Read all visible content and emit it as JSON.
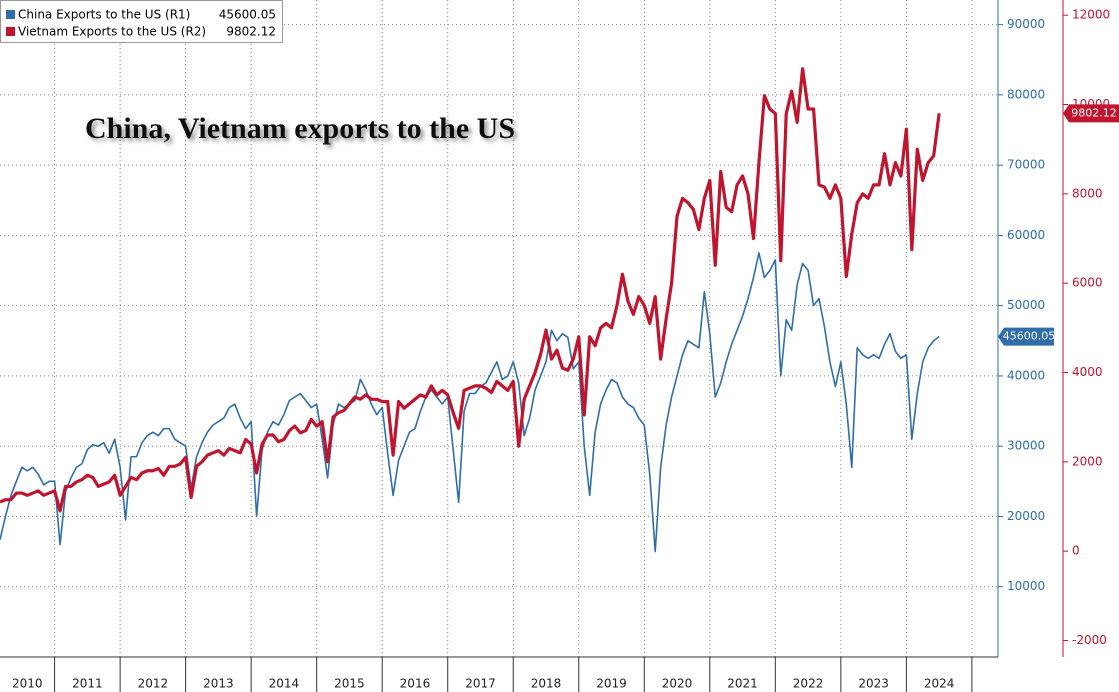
{
  "chart_data": {
    "type": "line",
    "title": "China, Vietnam exports to the US",
    "categories": [
      null,
      null,
      null,
      null,
      null,
      "2010",
      null,
      null,
      null,
      null,
      null,
      null,
      null,
      null,
      null,
      null,
      "2011",
      null,
      null,
      null,
      null,
      null,
      null,
      null,
      null,
      null,
      null,
      null,
      "2012",
      null,
      null,
      null,
      null,
      null,
      null,
      null,
      null,
      null,
      null,
      null,
      "2013",
      null,
      null,
      null,
      null,
      null,
      null,
      null,
      null,
      null,
      null,
      null,
      "2014",
      null,
      null,
      null,
      null,
      null,
      null,
      null,
      null,
      null,
      null,
      null,
      "2015",
      null,
      null,
      null,
      null,
      null,
      null,
      null,
      null,
      null,
      null,
      null,
      "2016",
      null,
      null,
      null,
      null,
      null,
      null,
      null,
      null,
      null,
      null,
      null,
      "2017",
      null,
      null,
      null,
      null,
      null,
      null,
      null,
      null,
      null,
      null,
      null,
      "2018",
      null,
      null,
      null,
      null,
      null,
      null,
      null,
      null,
      null,
      null,
      null,
      "2019",
      null,
      null,
      null,
      null,
      null,
      null,
      null,
      null,
      null,
      null,
      null,
      "2020",
      null,
      null,
      null,
      null,
      null,
      null,
      null,
      null,
      null,
      null,
      null,
      "2021",
      null,
      null,
      null,
      null,
      null,
      null,
      null,
      null,
      null,
      null,
      null,
      "2022",
      null,
      null,
      null,
      null,
      null,
      null,
      null,
      null,
      null,
      null,
      null,
      "2023",
      null,
      null,
      null,
      null,
      null,
      null,
      null,
      null,
      null,
      null,
      null,
      "2024"
    ],
    "series": [
      {
        "name": "China Exports to the US (R1)",
        "color": "#2f6ea8",
        "axis": "y",
        "values": [
          16700,
          20000,
          23000,
          25000,
          27000,
          26500,
          27000,
          26000,
          24500,
          25000,
          25000,
          16000,
          23500,
          25500,
          27000,
          27500,
          29500,
          30200,
          30000,
          30500,
          29000,
          31000,
          27000,
          19500,
          28500,
          28500,
          30500,
          31500,
          32000,
          31500,
          32500,
          32500,
          31000,
          30500,
          30000,
          24000,
          28500,
          30500,
          32000,
          33000,
          33500,
          34000,
          35500,
          36000,
          34000,
          32500,
          33500,
          20000,
          29500,
          32000,
          33500,
          33000,
          34500,
          36500,
          37000,
          37500,
          36500,
          35500,
          36000,
          31000,
          25500,
          33000,
          36000,
          35500,
          36000,
          36500,
          39500,
          38000,
          36000,
          34500,
          35500,
          29000,
          23000,
          28000,
          30000,
          32000,
          32500,
          35000,
          37000,
          38000,
          37000,
          36000,
          37000,
          29500,
          22000,
          35000,
          37500,
          37500,
          38500,
          39000,
          40500,
          42000,
          39500,
          40000,
          42000,
          39000,
          31500,
          34000,
          38000,
          40000,
          42000,
          46500,
          45000,
          46000,
          45500,
          41000,
          42000,
          30000,
          23000,
          32000,
          36000,
          38000,
          39500,
          39000,
          37000,
          36000,
          35500,
          34000,
          33000,
          26000,
          15000,
          27000,
          33000,
          37000,
          40000,
          43000,
          45000,
          44500,
          44000,
          52000,
          46000,
          37000,
          39000,
          42000,
          44500,
          46500,
          48500,
          51000,
          54000,
          57500,
          54000,
          55000,
          56500,
          40000,
          48000,
          46500,
          53000,
          56000,
          55000,
          50000,
          51000,
          47000,
          42000,
          38500,
          42000,
          36000,
          27000,
          44000,
          43000,
          42500,
          43000,
          42500,
          44500,
          46000,
          43500,
          42500,
          43000,
          31000,
          37500,
          42000,
          44000,
          45000,
          45600.05
        ]
      },
      {
        "name": "Vietnam Exports to the US (R2)",
        "color": "#c0152f",
        "axis": "y2",
        "values": [
          1100,
          1150,
          1150,
          1300,
          1300,
          1250,
          1300,
          1350,
          1250,
          1300,
          1350,
          900,
          1450,
          1450,
          1550,
          1600,
          1700,
          1650,
          1450,
          1500,
          1550,
          1700,
          1250,
          1450,
          1650,
          1600,
          1750,
          1800,
          1800,
          1850,
          1700,
          1900,
          1900,
          1950,
          2100,
          1200,
          1900,
          2000,
          2150,
          2200,
          2250,
          2150,
          2300,
          2250,
          2200,
          2500,
          2400,
          1750,
          2400,
          2600,
          2600,
          2450,
          2500,
          2700,
          2800,
          2650,
          2700,
          2950,
          2800,
          2900,
          2000,
          3000,
          3100,
          3150,
          3300,
          3450,
          3400,
          3500,
          3400,
          3400,
          3350,
          3350,
          2150,
          3350,
          3200,
          3300,
          3400,
          3500,
          3450,
          3700,
          3500,
          3600,
          3500,
          3100,
          2750,
          3600,
          3650,
          3700,
          3700,
          3650,
          3550,
          3800,
          3700,
          3600,
          3800,
          2350,
          3400,
          3700,
          4000,
          4400,
          4950,
          4300,
          4500,
          4100,
          4050,
          4300,
          4800,
          3050,
          4800,
          4600,
          5000,
          5100,
          5000,
          5500,
          6200,
          5600,
          5300,
          5700,
          5500,
          5100,
          5700,
          4300,
          5200,
          6000,
          7500,
          7900,
          7800,
          7650,
          7200,
          7900,
          8300,
          6400,
          8500,
          7700,
          7600,
          8200,
          8400,
          8000,
          7000,
          8700,
          10200,
          9900,
          9800,
          6500,
          9800,
          10300,
          9600,
          10800,
          9900,
          9900,
          8200,
          8150,
          7900,
          8200,
          7900,
          6150,
          7100,
          7800,
          8000,
          7900,
          8200,
          8200,
          8900,
          8200,
          8700,
          8400,
          9450,
          6750,
          9000,
          8300,
          8700,
          8850,
          9802.12
        ]
      }
    ],
    "ylim": [
      0,
      93500
    ],
    "yticks": [
      10000,
      20000,
      30000,
      40000,
      50000,
      60000,
      70000,
      80000,
      90000
    ],
    "y2lim": [
      -2370,
      12340
    ],
    "y2ticks": [
      -2000,
      0,
      2000,
      4000,
      6000,
      8000,
      10000,
      12000
    ],
    "grid": true
  }
}
